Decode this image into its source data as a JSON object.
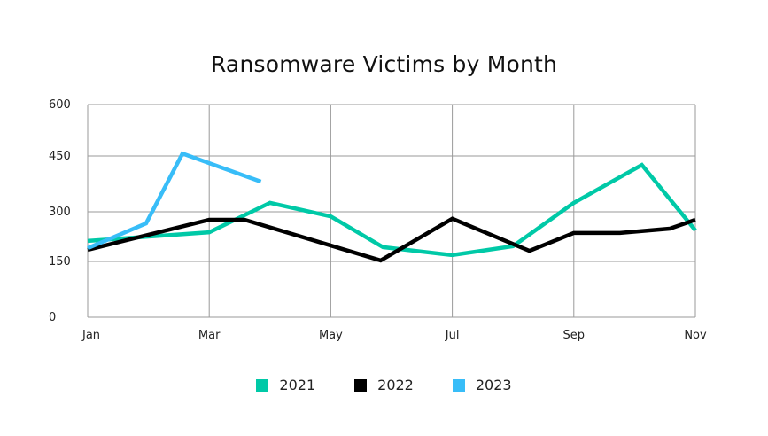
{
  "chart_data": {
    "type": "line",
    "title": "Ransomware Victims by Month",
    "xlabel": "",
    "ylabel": "",
    "ylim": [
      0,
      600
    ],
    "yticks": [
      0,
      150,
      300,
      450,
      600
    ],
    "xtick_labels": [
      "Jan",
      "Mar",
      "May",
      "Jul",
      "Sep",
      "Nov"
    ],
    "grid": true,
    "legend_position": "bottom",
    "series": [
      {
        "name": "2021",
        "color": "#00c9a7",
        "points": [
          {
            "x": 0.0,
            "y": 212
          },
          {
            "x": 2.0,
            "y": 238
          },
          {
            "x": 3.0,
            "y": 324
          },
          {
            "x": 4.0,
            "y": 286
          },
          {
            "x": 4.86,
            "y": 193
          },
          {
            "x": 6.0,
            "y": 169
          },
          {
            "x": 7.0,
            "y": 196
          },
          {
            "x": 8.0,
            "y": 324
          },
          {
            "x": 9.12,
            "y": 426
          },
          {
            "x": 10.0,
            "y": 244
          }
        ]
      },
      {
        "name": "2022",
        "color": "#000000",
        "points": [
          {
            "x": 0.0,
            "y": 185
          },
          {
            "x": 2.0,
            "y": 276
          },
          {
            "x": 2.58,
            "y": 276
          },
          {
            "x": 4.82,
            "y": 153
          },
          {
            "x": 6.0,
            "y": 279
          },
          {
            "x": 7.27,
            "y": 182
          },
          {
            "x": 8.0,
            "y": 236
          },
          {
            "x": 8.76,
            "y": 236
          },
          {
            "x": 9.58,
            "y": 249
          },
          {
            "x": 10.0,
            "y": 276
          }
        ]
      },
      {
        "name": "2023",
        "color": "#38bdf8",
        "points": [
          {
            "x": 0.0,
            "y": 190
          },
          {
            "x": 0.96,
            "y": 265
          },
          {
            "x": 1.56,
            "y": 457
          },
          {
            "x": 2.85,
            "y": 381
          }
        ]
      }
    ]
  },
  "legend": [
    {
      "label": "2021",
      "color": "#00c9a7"
    },
    {
      "label": "2022",
      "color": "#000000"
    },
    {
      "label": "2023",
      "color": "#38bdf8"
    }
  ]
}
